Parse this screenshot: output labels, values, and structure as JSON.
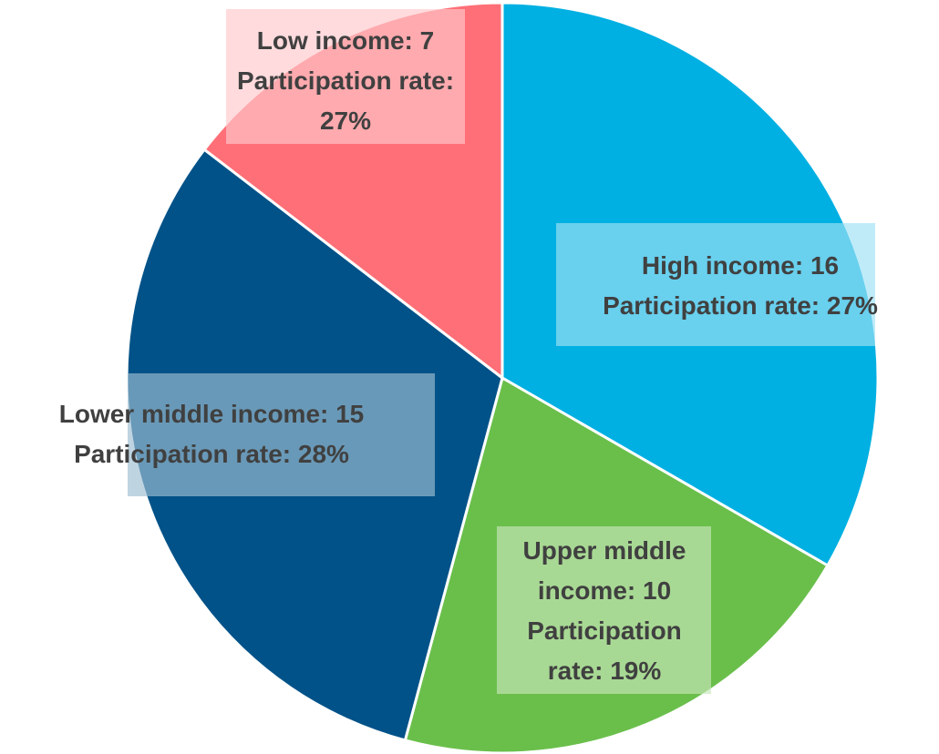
{
  "chart_data": {
    "type": "pie",
    "categories": [
      "High income",
      "Upper middle income",
      "Lower middle income",
      "Low income"
    ],
    "values": [
      16,
      10,
      15,
      7
    ],
    "value_labels": [
      "High income: 16",
      "Upper middle income: 10",
      "Lower middle income: 15",
      "Low income: 7"
    ],
    "rate_labels": [
      "Participation rate: 27%",
      "Participation rate: 19%",
      "Participation rate: 28%",
      "Participation rate: 27%"
    ],
    "colors": [
      "#00b0e2",
      "#6abf4b",
      "#005288",
      "#ff6f77"
    ]
  }
}
